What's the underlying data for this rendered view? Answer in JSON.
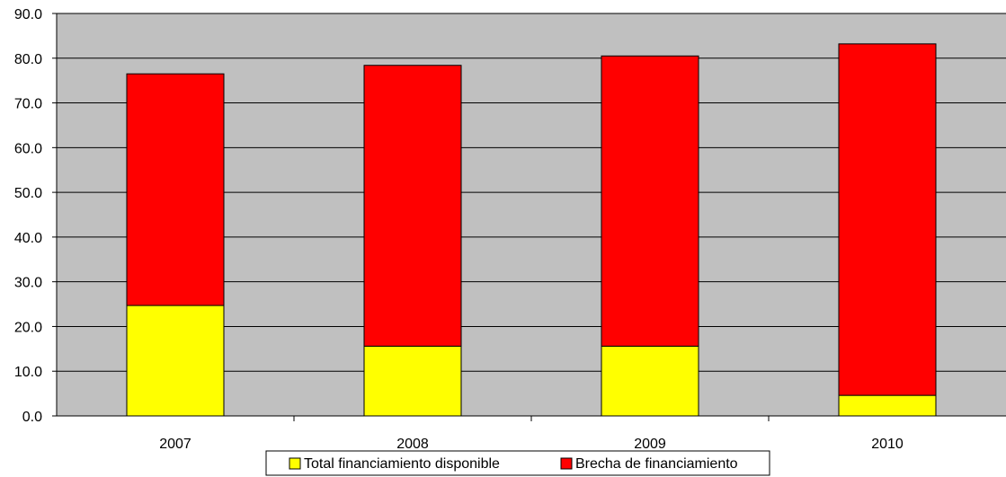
{
  "chart_data": {
    "type": "bar",
    "stacked": true,
    "categories": [
      "2007",
      "2008",
      "2009",
      "2010"
    ],
    "series": [
      {
        "name": "Total financiamiento disponible",
        "color": "#ffff00",
        "values": [
          24.7,
          15.6,
          15.6,
          4.6
        ]
      },
      {
        "name": "Brecha de financiamiento",
        "color": "#ff0000",
        "values": [
          51.8,
          62.8,
          64.9,
          78.6
        ]
      }
    ],
    "ylim": [
      0,
      90
    ],
    "ytick_labels": [
      "0.0",
      "10.0",
      "20.0",
      "30.0",
      "40.0",
      "50.0",
      "60.0",
      "70.0",
      "80.0",
      "90.0"
    ],
    "grid": true,
    "plot_background": "#c0c0c0",
    "legend": {
      "position": "bottom"
    }
  }
}
